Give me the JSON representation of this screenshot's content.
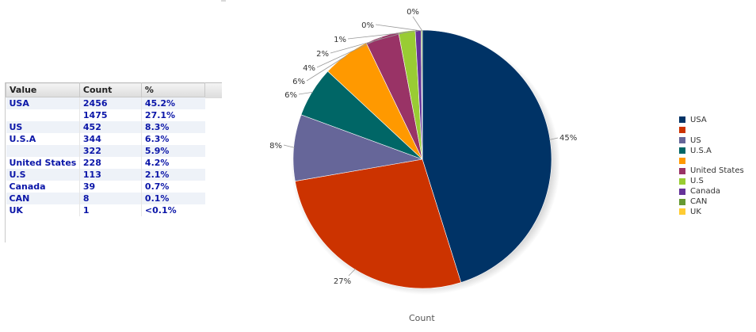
{
  "table": {
    "headers": {
      "value": "Value",
      "count": "Count",
      "pct": "%"
    },
    "rows": [
      {
        "value": "USA",
        "count": "2456",
        "pct": "45.2%"
      },
      {
        "value": "",
        "count": "1475",
        "pct": "27.1%"
      },
      {
        "value": "US",
        "count": "452",
        "pct": "8.3%"
      },
      {
        "value": "U.S.A",
        "count": "344",
        "pct": "6.3%"
      },
      {
        "value": "",
        "count": "322",
        "pct": "5.9%"
      },
      {
        "value": "United States",
        "count": "228",
        "pct": "4.2%"
      },
      {
        "value": "U.S",
        "count": "113",
        "pct": "2.1%"
      },
      {
        "value": "Canada",
        "count": "39",
        "pct": "0.7%"
      },
      {
        "value": "CAN",
        "count": "8",
        "pct": "0.1%"
      },
      {
        "value": "UK",
        "count": "1",
        "pct": "<0.1%"
      }
    ]
  },
  "chart_data": {
    "type": "pie",
    "xlabel": "Count",
    "legend_position": "right",
    "slices": [
      {
        "label": "USA",
        "value": 2456,
        "pct_label": "45%",
        "color": "#003366"
      },
      {
        "label": "",
        "value": 1475,
        "pct_label": "27%",
        "color": "#cc3300"
      },
      {
        "label": "US",
        "value": 452,
        "pct_label": "8%",
        "color": "#666699"
      },
      {
        "label": "U.S.A",
        "value": 344,
        "pct_label": "6%",
        "color": "#006666"
      },
      {
        "label": "",
        "value": 322,
        "pct_label": "6%",
        "color": "#ff9900"
      },
      {
        "label": "United States",
        "value": 228,
        "pct_label": "4%",
        "color": "#993366"
      },
      {
        "label": "U.S",
        "value": 113,
        "pct_label": "2%",
        "color": "#99cc33"
      },
      {
        "label": "Canada",
        "value": 39,
        "pct_label": "1%",
        "color": "#663399"
      },
      {
        "label": "CAN",
        "value": 8,
        "pct_label": "0%",
        "color": "#669933"
      },
      {
        "label": "UK",
        "value": 1,
        "pct_label": "0%",
        "color": "#ffcc33"
      }
    ]
  }
}
